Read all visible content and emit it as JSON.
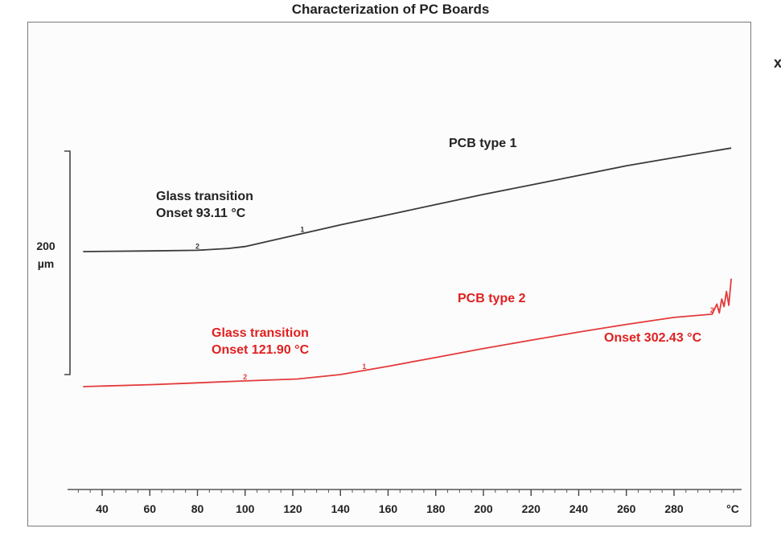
{
  "page": {
    "title": "Characterization of PC Boards",
    "edge_char": "x"
  },
  "chart_data": {
    "type": "line",
    "title": "Characterization of PC Boards",
    "xlabel": "°C",
    "ylabel": "",
    "xlim": [
      30,
      310
    ],
    "x_ticks": [
      40,
      60,
      80,
      100,
      120,
      140,
      160,
      180,
      200,
      220,
      240,
      260,
      280
    ],
    "x_unit_label": "°C",
    "y_scale_bar": {
      "label_value": "200",
      "label_unit": "µm",
      "length": 200
    },
    "grid": false,
    "colors": {
      "series1": "#3a3a3a",
      "series2": "#e43a3a",
      "text_black": "#222222",
      "text_red": "#e02020"
    },
    "series": [
      {
        "name": "PCB type 1",
        "color": "#3a3a3a",
        "points": [
          [
            32,
            0
          ],
          [
            60,
            1
          ],
          [
            80,
            2
          ],
          [
            93,
            5
          ],
          [
            100,
            8
          ],
          [
            120,
            25
          ],
          [
            140,
            42
          ],
          [
            160,
            58
          ],
          [
            180,
            74
          ],
          [
            200,
            90
          ],
          [
            220,
            105
          ],
          [
            240,
            120
          ],
          [
            260,
            135
          ],
          [
            280,
            148
          ],
          [
            304,
            163
          ]
        ]
      },
      {
        "name": "PCB type 2",
        "color": "#e43a3a",
        "points": [
          [
            32,
            0
          ],
          [
            60,
            3
          ],
          [
            80,
            6
          ],
          [
            100,
            9
          ],
          [
            122,
            12
          ],
          [
            140,
            19
          ],
          [
            160,
            32
          ],
          [
            180,
            46
          ],
          [
            200,
            60
          ],
          [
            220,
            73
          ],
          [
            240,
            86
          ],
          [
            260,
            98
          ],
          [
            280,
            109
          ],
          [
            296,
            114
          ],
          [
            298,
            130
          ],
          [
            299,
            116
          ],
          [
            300,
            138
          ],
          [
            301,
            126
          ],
          [
            302,
            150
          ],
          [
            303,
            128
          ],
          [
            304,
            170
          ]
        ]
      }
    ],
    "annotations": [
      {
        "lines": [
          "Glass transition",
          "Onset 93.11 °C"
        ],
        "color": "#222222",
        "series": "PCB type 1"
      },
      {
        "lines": [
          "PCB type 1"
        ],
        "color": "#222222",
        "series": "PCB type 1"
      },
      {
        "lines": [
          "PCB type 2"
        ],
        "color": "#e02020",
        "series": "PCB type 2"
      },
      {
        "lines": [
          "Glass transition",
          "Onset 121.90 °C"
        ],
        "color": "#e02020",
        "series": "PCB type 2"
      },
      {
        "lines": [
          "Onset 302.43 °C"
        ],
        "color": "#e02020",
        "series": "PCB type 2"
      }
    ],
    "onset_markers": [
      {
        "series": "PCB type 1",
        "x": [
          80,
          124
        ],
        "labels": [
          "2",
          "1"
        ]
      },
      {
        "series": "PCB type 2",
        "x": [
          100,
          150,
          296
        ],
        "labels": [
          "2",
          "1",
          "2"
        ]
      }
    ]
  }
}
